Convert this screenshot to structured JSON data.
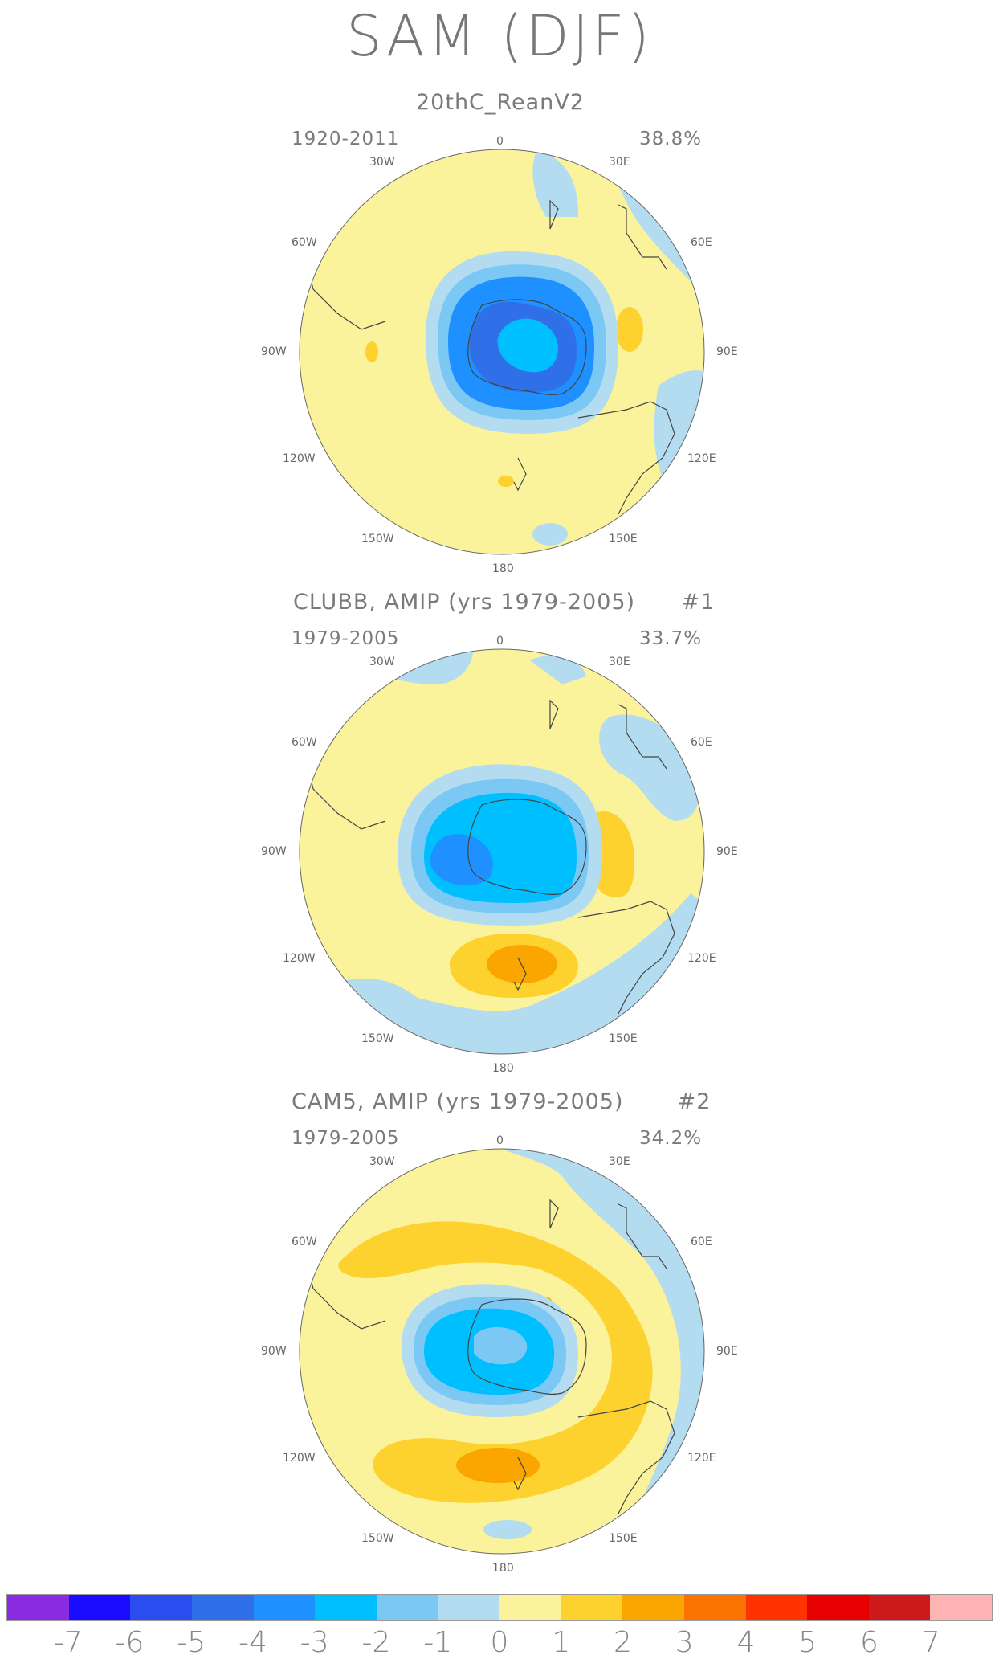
{
  "title": "SAM (DJF)",
  "panels": [
    {
      "title": "20thC_ReanV2",
      "period": "1920-2011",
      "percent": "38.8%"
    },
    {
      "title": "CLUBB, AMIP (yrs 1979-2005)      #1",
      "period": "1979-2005",
      "percent": "33.7%"
    },
    {
      "title": "CAM5, AMIP (yrs 1979-2005)       #2",
      "period": "1979-2005",
      "percent": "34.2%"
    }
  ],
  "longitude_labels": {
    "top": "0",
    "bottom": "180",
    "w30": "30W",
    "e30": "30E",
    "w60": "60W",
    "e60": "60E",
    "w90": "90W",
    "e90": "90E",
    "w120": "120W",
    "e120": "120E",
    "w150": "150W",
    "e150": "150E"
  },
  "colorbar": {
    "labels": [
      "-7",
      "-6",
      "-5",
      "-4",
      "-3",
      "-2",
      "-1",
      "0",
      "1",
      "2",
      "3",
      "4",
      "5",
      "6",
      "7"
    ],
    "colors": [
      "#8a2be2",
      "#1a0dff",
      "#2a4df0",
      "#2f6fe8",
      "#1e90ff",
      "#00bfff",
      "#7cc8f5",
      "#b4dcf0",
      "#fbf39b",
      "#fdd22f",
      "#fba500",
      "#fa7300",
      "#ff3300",
      "#e60000",
      "#cc1a1a",
      "#ffb3b3"
    ]
  }
}
